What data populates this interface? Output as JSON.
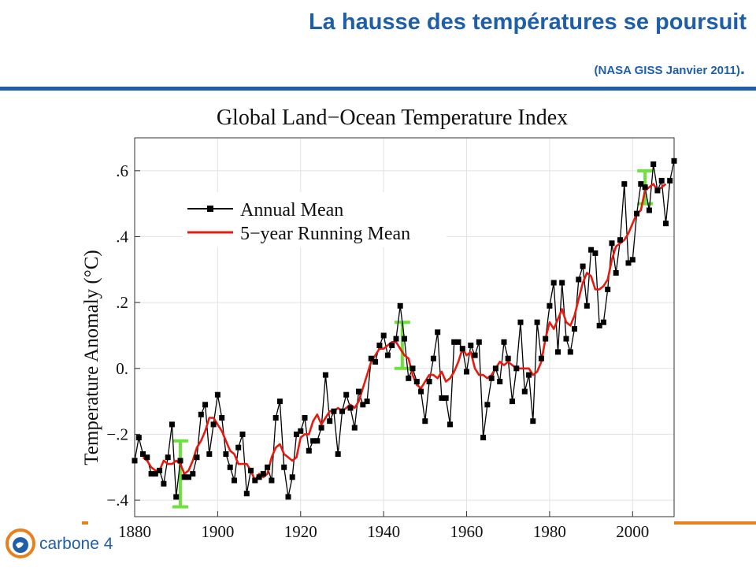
{
  "slide": {
    "title": "La hausse des températures se poursuit",
    "subtitle": "(NASA GISS Janvier 2011)",
    "subtitle_dot": ".",
    "accent_color": "#1f5fa8",
    "footer_color": "#e8801e"
  },
  "logo": {
    "text": "carbone 4",
    "icon": "globe-swirl-icon"
  },
  "chart_data": {
    "type": "line",
    "title": "Global Land−Ocean Temperature Index",
    "xlabel": "",
    "ylabel": "Temperature Anomaly (°C)",
    "xlim": [
      1880,
      2010
    ],
    "ylim": [
      -0.45,
      0.7
    ],
    "x_ticks": [
      1880,
      1900,
      1920,
      1940,
      1960,
      1980,
      2000
    ],
    "y_ticks": [
      {
        "value": -0.4,
        "label": "−.4"
      },
      {
        "value": -0.2,
        "label": "−.2"
      },
      {
        "value": 0.0,
        "label": "0."
      },
      {
        "value": 0.2,
        "label": ".2"
      },
      {
        "value": 0.4,
        "label": ".4"
      },
      {
        "value": 0.6,
        "label": ".6"
      }
    ],
    "grid": true,
    "legend_position": "top-left",
    "series": [
      {
        "name": "Annual Mean",
        "color": "#000000",
        "marker": "square",
        "x": [
          1880,
          1881,
          1882,
          1883,
          1884,
          1885,
          1886,
          1887,
          1888,
          1889,
          1890,
          1891,
          1892,
          1893,
          1894,
          1895,
          1896,
          1897,
          1898,
          1899,
          1900,
          1901,
          1902,
          1903,
          1904,
          1905,
          1906,
          1907,
          1908,
          1909,
          1910,
          1911,
          1912,
          1913,
          1914,
          1915,
          1916,
          1917,
          1918,
          1919,
          1920,
          1921,
          1922,
          1923,
          1924,
          1925,
          1926,
          1927,
          1928,
          1929,
          1930,
          1931,
          1932,
          1933,
          1934,
          1935,
          1936,
          1937,
          1938,
          1939,
          1940,
          1941,
          1942,
          1943,
          1944,
          1945,
          1946,
          1947,
          1948,
          1949,
          1950,
          1951,
          1952,
          1953,
          1954,
          1955,
          1956,
          1957,
          1958,
          1959,
          1960,
          1961,
          1962,
          1963,
          1964,
          1965,
          1966,
          1967,
          1968,
          1969,
          1970,
          1971,
          1972,
          1973,
          1974,
          1975,
          1976,
          1977,
          1978,
          1979,
          1980,
          1981,
          1982,
          1983,
          1984,
          1985,
          1986,
          1987,
          1988,
          1989,
          1990,
          1991,
          1992,
          1993,
          1994,
          1995,
          1996,
          1997,
          1998,
          1999,
          2000,
          2001,
          2002,
          2003,
          2004,
          2005,
          2006,
          2007,
          2008,
          2009,
          2010
        ],
        "values": [
          -0.28,
          -0.21,
          -0.26,
          -0.27,
          -0.32,
          -0.32,
          -0.31,
          -0.35,
          -0.27,
          -0.17,
          -0.39,
          -0.28,
          -0.33,
          -0.33,
          -0.32,
          -0.27,
          -0.14,
          -0.11,
          -0.26,
          -0.17,
          -0.08,
          -0.15,
          -0.26,
          -0.3,
          -0.34,
          -0.24,
          -0.2,
          -0.38,
          -0.31,
          -0.34,
          -0.33,
          -0.32,
          -0.3,
          -0.34,
          -0.15,
          -0.1,
          -0.3,
          -0.39,
          -0.33,
          -0.2,
          -0.19,
          -0.15,
          -0.25,
          -0.22,
          -0.22,
          -0.18,
          -0.02,
          -0.16,
          -0.13,
          -0.26,
          -0.13,
          -0.08,
          -0.12,
          -0.18,
          -0.07,
          -0.11,
          -0.1,
          0.03,
          0.02,
          0.07,
          0.1,
          0.04,
          0.07,
          0.09,
          0.19,
          0.09,
          -0.03,
          0.0,
          -0.04,
          -0.07,
          -0.16,
          -0.04,
          0.03,
          0.11,
          -0.09,
          -0.09,
          -0.17,
          0.08,
          0.08,
          0.06,
          -0.01,
          0.07,
          0.04,
          0.08,
          -0.21,
          -0.11,
          -0.03,
          0.0,
          -0.04,
          0.08,
          0.03,
          -0.1,
          0.0,
          0.14,
          -0.07,
          -0.02,
          -0.16,
          0.14,
          0.03,
          0.09,
          0.19,
          0.26,
          0.05,
          0.26,
          0.09,
          0.05,
          0.12,
          0.27,
          0.31,
          0.19,
          0.36,
          0.35,
          0.13,
          0.14,
          0.24,
          0.38,
          0.29,
          0.39,
          0.56,
          0.32,
          0.33,
          0.47,
          0.56,
          0.55,
          0.48,
          0.62,
          0.54,
          0.57,
          0.44,
          0.57,
          0.63
        ]
      },
      {
        "name": "5−year Running Mean",
        "color": "#e8190e",
        "marker": "none",
        "x": [
          1882,
          1883,
          1884,
          1885,
          1886,
          1887,
          1888,
          1889,
          1890,
          1891,
          1892,
          1893,
          1894,
          1895,
          1896,
          1897,
          1898,
          1899,
          1900,
          1901,
          1902,
          1903,
          1904,
          1905,
          1906,
          1907,
          1908,
          1909,
          1910,
          1911,
          1912,
          1913,
          1914,
          1915,
          1916,
          1917,
          1918,
          1919,
          1920,
          1921,
          1922,
          1923,
          1924,
          1925,
          1926,
          1927,
          1928,
          1929,
          1930,
          1931,
          1932,
          1933,
          1934,
          1935,
          1936,
          1937,
          1938,
          1939,
          1940,
          1941,
          1942,
          1943,
          1944,
          1945,
          1946,
          1947,
          1948,
          1949,
          1950,
          1951,
          1952,
          1953,
          1954,
          1955,
          1956,
          1957,
          1958,
          1959,
          1960,
          1961,
          1962,
          1963,
          1964,
          1965,
          1966,
          1967,
          1968,
          1969,
          1970,
          1971,
          1972,
          1973,
          1974,
          1975,
          1976,
          1977,
          1978,
          1979,
          1980,
          1981,
          1982,
          1983,
          1984,
          1985,
          1986,
          1987,
          1988,
          1989,
          1990,
          1991,
          1992,
          1993,
          1994,
          1995,
          1996,
          1997,
          1998,
          1999,
          2000,
          2001,
          2002,
          2003,
          2004,
          2005,
          2006,
          2007,
          2008
        ],
        "values": [
          -0.27,
          -0.28,
          -0.3,
          -0.31,
          -0.31,
          -0.28,
          -0.29,
          -0.29,
          -0.28,
          -0.29,
          -0.32,
          -0.31,
          -0.28,
          -0.24,
          -0.22,
          -0.19,
          -0.15,
          -0.15,
          -0.17,
          -0.19,
          -0.22,
          -0.25,
          -0.26,
          -0.29,
          -0.29,
          -0.29,
          -0.31,
          -0.34,
          -0.32,
          -0.33,
          -0.32,
          -0.27,
          -0.24,
          -0.23,
          -0.26,
          -0.27,
          -0.28,
          -0.27,
          -0.21,
          -0.2,
          -0.2,
          -0.16,
          -0.14,
          -0.17,
          -0.15,
          -0.13,
          -0.13,
          -0.12,
          -0.13,
          -0.12,
          -0.11,
          -0.12,
          -0.1,
          -0.06,
          -0.02,
          0.02,
          0.04,
          0.06,
          0.06,
          0.07,
          0.08,
          0.08,
          0.06,
          0.04,
          0.03,
          -0.02,
          -0.05,
          -0.06,
          -0.04,
          -0.02,
          -0.02,
          -0.03,
          -0.01,
          -0.04,
          -0.03,
          -0.01,
          0.02,
          0.06,
          0.04,
          0.05,
          0.0,
          -0.02,
          -0.02,
          -0.03,
          -0.02,
          0.0,
          0.02,
          0.01,
          0.02,
          0.01,
          0.0,
          0.0,
          0.0,
          0.0,
          -0.02,
          -0.01,
          0.02,
          0.09,
          0.14,
          0.12,
          0.15,
          0.18,
          0.14,
          0.13,
          0.16,
          0.21,
          0.26,
          0.29,
          0.28,
          0.24,
          0.24,
          0.25,
          0.27,
          0.33,
          0.37,
          0.38,
          0.39,
          0.41,
          0.44,
          0.47,
          0.48,
          0.54,
          0.55,
          0.56,
          0.54,
          0.55,
          0.56
        ]
      }
    ],
    "uncertainty_bars": {
      "color": "#6ee23c",
      "items": [
        {
          "x": 1891,
          "low": -0.42,
          "high": -0.22
        },
        {
          "x": 1944.5,
          "low": 0.0,
          "high": 0.14
        },
        {
          "x": 2003,
          "low": 0.5,
          "high": 0.6
        }
      ]
    }
  }
}
